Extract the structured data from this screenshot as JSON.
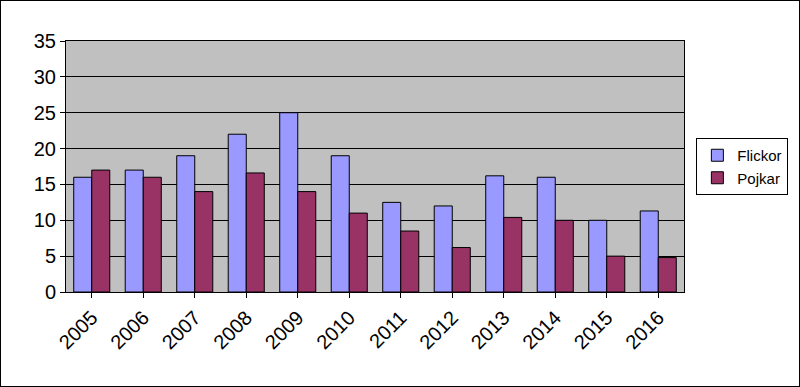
{
  "chart_data": {
    "type": "bar",
    "categories": [
      "2005",
      "2006",
      "2007",
      "2008",
      "2009",
      "2010",
      "2011",
      "2012",
      "2013",
      "2014",
      "2015",
      "2016"
    ],
    "series": [
      {
        "name": "Flickor",
        "color": "#9999ff",
        "values": [
          16,
          17,
          19,
          22,
          25,
          19,
          12.5,
          12,
          16.2,
          16,
          10,
          11.3
        ]
      },
      {
        "name": "Pojkar",
        "color": "#993366",
        "values": [
          17,
          16,
          14,
          16.6,
          14,
          11,
          8.5,
          6.2,
          10.4,
          10,
          5,
          4.8
        ]
      }
    ],
    "ylim": [
      0,
      35
    ],
    "yticks": [
      0,
      5,
      10,
      15,
      20,
      25,
      30,
      35
    ],
    "grid": true,
    "legend": "right"
  }
}
